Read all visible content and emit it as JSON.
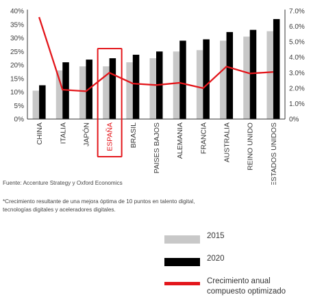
{
  "chart_data": {
    "type": "bar",
    "categories": [
      "CHINA",
      "ITALIA",
      "JAPÓN",
      "ESPAÑA",
      "BRASIL",
      "PAISES BAJOS",
      "ALEMANIA",
      "FRANCIA",
      "AUSTRALIA",
      "REINO UNIDO",
      "ESTADOS UNIDOS"
    ],
    "highlight_category": "ESPAÑA",
    "series": [
      {
        "name": "2015",
        "axis": "left",
        "color": "#c8c8c8",
        "values": [
          10.5,
          18,
          19.5,
          19.5,
          21,
          22.5,
          25,
          25.5,
          29,
          30.5,
          32.5
        ]
      },
      {
        "name": "2020",
        "axis": "left",
        "color": "#000000",
        "values": [
          12.5,
          21,
          22,
          22.5,
          23.8,
          25,
          29,
          29.5,
          32.2,
          33,
          37
        ]
      },
      {
        "name": "Crecimiento anual compuesto optimizado",
        "axis": "right",
        "type": "line",
        "color": "#e3161b",
        "values": [
          6.6,
          1.9,
          1.8,
          3.0,
          2.3,
          2.2,
          2.35,
          2.0,
          3.4,
          2.95,
          3.05
        ]
      }
    ],
    "y_left": {
      "range": [
        0,
        40
      ],
      "ticks": [
        "0%",
        "5%",
        "10%",
        "15%",
        "20%",
        "25%",
        "30%",
        "35%",
        "40%"
      ]
    },
    "y_right": {
      "range": [
        0,
        7
      ],
      "ticks": [
        "0%",
        "1.0%",
        "2.0%",
        "3.0%",
        "4.0%",
        "5.0%",
        "6.0%",
        "7.0%"
      ]
    },
    "legend": "bottom-right",
    "grid": false,
    "colors": {
      "highlight": "#e3161b",
      "axis": "#333333"
    }
  },
  "notes": {
    "source": "Fuente: Accenture Strategy y Oxford Economics",
    "footnote_line1": "*Crecimiento resultante de una mejora óptima de 10 puntos en talento digital,",
    "footnote_line2": "tecnologías digitales y aceleradores digitales."
  },
  "legend": {
    "label_2015": "2015",
    "label_2020": "2020",
    "label_line_1": "Crecimiento anual",
    "label_line_2": "compuesto optimizado"
  }
}
